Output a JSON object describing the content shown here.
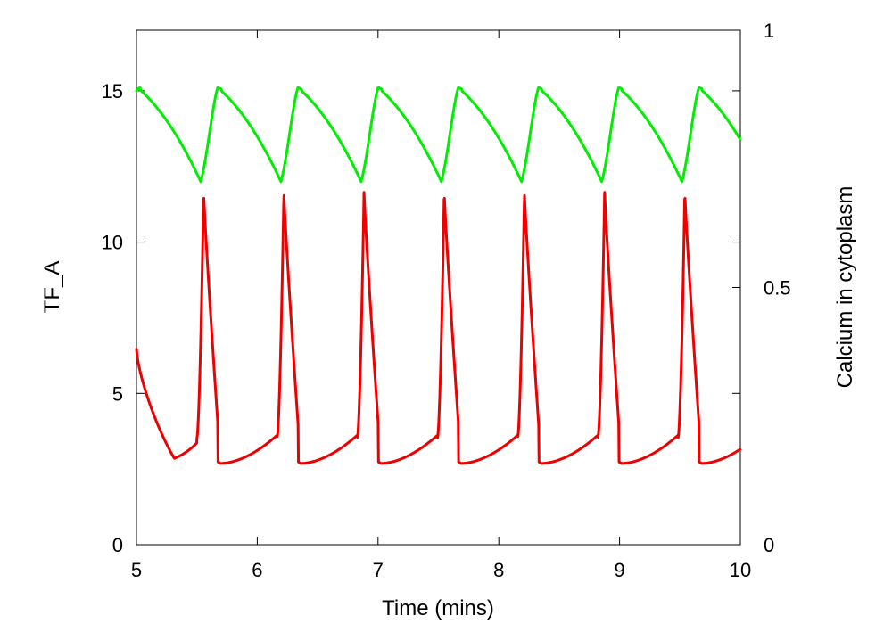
{
  "chart_data": {
    "type": "line",
    "title": "",
    "xlabel": "Time (mins)",
    "ylabel_left": "TF_A",
    "ylabel_right": "Calcium in cytoplasm",
    "xlim": [
      5,
      10
    ],
    "ylim_left": [
      0,
      17
    ],
    "ylim_right": [
      0,
      1
    ],
    "xticks": [
      "5",
      "6",
      "7",
      "8",
      "9",
      "10"
    ],
    "yticks_left": [
      "0",
      "5",
      "10",
      "15"
    ],
    "yticks_right": [
      "0",
      "0.5",
      "1"
    ],
    "grid": false,
    "series": [
      {
        "axis": "left",
        "color": "#00ee00",
        "period": 0.664,
        "troughs": [
          5.532,
          6.196,
          6.86,
          7.524,
          8.188,
          8.852,
          9.516
        ],
        "peak_offset": 0.14,
        "x_start": 5.0,
        "y_start": 15.0,
        "y_peak": 15.1,
        "y_trough": 12.0,
        "x_end": 10.0,
        "y_end": 12.7
      },
      {
        "axis": "right",
        "color": "#ee0000",
        "period": 0.664,
        "peaks": [
          5.556,
          6.22,
          6.884,
          7.548,
          8.212,
          8.876,
          9.54
        ],
        "x_start": 5.0,
        "y_start": 0.38,
        "y_peak": 0.685,
        "y_min": 0.158,
        "min_offset": 0.17,
        "x_end": 10.0,
        "y_end": 0.177
      }
    ]
  }
}
